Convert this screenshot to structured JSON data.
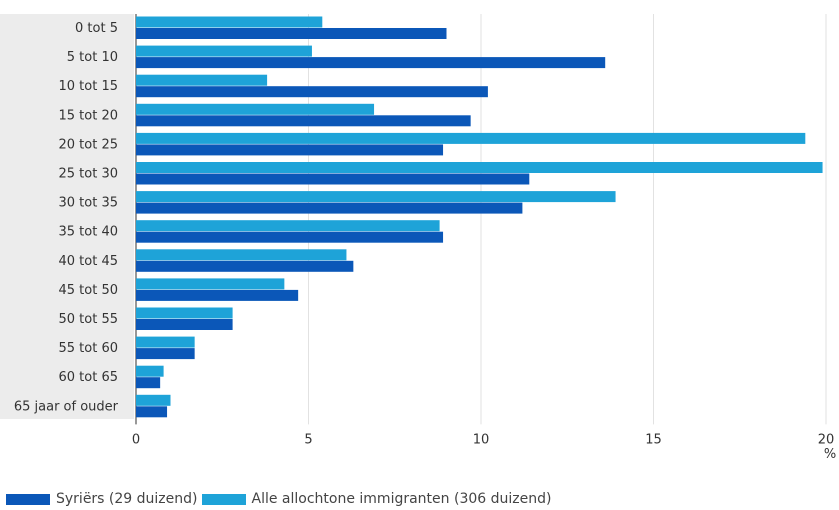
{
  "chart_data": {
    "type": "bar",
    "orientation": "horizontal",
    "categories": [
      "0 tot 5",
      "5 tot 10",
      "10 tot 15",
      "15 tot 20",
      "20 tot 25",
      "25 tot 30",
      "30 tot 35",
      "35 tot 40",
      "40 tot 45",
      "45 tot 50",
      "50 tot 55",
      "55 tot 60",
      "60 tot 65",
      "65 jaar of ouder"
    ],
    "series": [
      {
        "name": "Alle allochtone immigranten (306 duizend)",
        "color": "#1ea3d8",
        "values": [
          5.4,
          5.1,
          3.8,
          6.9,
          19.4,
          19.9,
          13.9,
          8.8,
          6.1,
          4.3,
          2.8,
          1.7,
          0.8,
          1.0
        ]
      },
      {
        "name": "Syriërs (29 duizend)",
        "color": "#0b57b8",
        "values": [
          9.0,
          13.6,
          10.2,
          9.7,
          8.9,
          11.4,
          11.2,
          8.9,
          6.3,
          4.7,
          2.8,
          1.7,
          0.7,
          0.9
        ]
      }
    ],
    "xlim": [
      0,
      20
    ],
    "xticks": [
      0,
      5,
      10,
      15,
      20
    ],
    "x_unit": "%",
    "grid": true,
    "legend_position": "bottom"
  },
  "legend": {
    "items": [
      {
        "label": "Syriërs (29 duizend)",
        "color": "#0b57b8"
      },
      {
        "label": "Alle allochtone immigranten (306 duizend)",
        "color": "#1ea3d8"
      }
    ]
  }
}
